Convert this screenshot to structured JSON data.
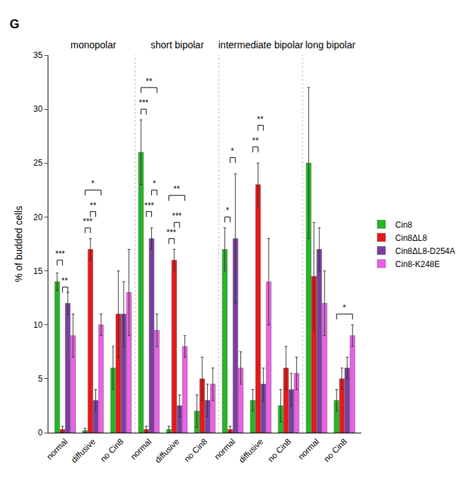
{
  "chart_data": {
    "type": "bar",
    "panel": "G",
    "y_label": "% of budded cells",
    "categories": [
      "normal",
      "diffusive",
      "no Cin8",
      "normal",
      "diffusive",
      "no Cin8",
      "normal",
      "diffusive",
      "no Cin8",
      "normal",
      "no Cin8"
    ],
    "groups": [
      {
        "label": "monopolar",
        "categories": [
          0,
          1,
          2
        ]
      },
      {
        "label": "short bipolar",
        "categories": [
          3,
          4,
          5
        ]
      },
      {
        "label": "intermediate bipolar",
        "categories": [
          6,
          7,
          8
        ]
      },
      {
        "label": "long bipolar",
        "categories": [
          9,
          10
        ]
      }
    ],
    "series": [
      {
        "name": "Cin8",
        "color": "#22b822",
        "values": [
          14,
          0.2,
          6,
          26,
          0.3,
          2,
          17,
          3,
          2.5,
          25,
          3
        ],
        "errors": [
          0.8,
          0.2,
          2,
          3,
          0.3,
          1.5,
          2,
          1,
          1.5,
          7,
          1
        ]
      },
      {
        "name": "Cin8ΔL8",
        "color": "#e81818",
        "values": [
          0.3,
          17,
          11,
          0.3,
          16,
          5,
          0.3,
          23,
          6,
          14.5,
          5
        ],
        "errors": [
          0.3,
          1,
          4,
          0.3,
          1,
          2,
          0.3,
          2,
          2,
          5,
          1
        ]
      },
      {
        "name": "Cin8ΔL8-D254A",
        "color": "#7b3fa3",
        "values": [
          12,
          3,
          11,
          18,
          2.5,
          3,
          18,
          4.5,
          4,
          17,
          6
        ],
        "errors": [
          1,
          1,
          3,
          1,
          1,
          1.5,
          6,
          1.5,
          1.5,
          2,
          1
        ]
      },
      {
        "name": "Cin8-K248E",
        "color": "#ee5fe8",
        "values": [
          9,
          10,
          13,
          9.5,
          8,
          4.5,
          6,
          14,
          5.5,
          12,
          9
        ],
        "errors": [
          2,
          1,
          4,
          1.5,
          1,
          1.5,
          1.5,
          4,
          1.5,
          3,
          1
        ]
      }
    ],
    "significance": [
      {
        "category": 0,
        "from": 0,
        "to": 1,
        "text": "***",
        "y": 16
      },
      {
        "category": 0,
        "from": 1,
        "to": 2,
        "text": "**",
        "y": 13.5
      },
      {
        "category": 1,
        "from": 0,
        "to": 1,
        "text": "***",
        "y": 19
      },
      {
        "category": 1,
        "from": 1,
        "to": 2,
        "text": "**",
        "y": 20.5
      },
      {
        "category": 1,
        "from": 0,
        "to": 3,
        "text": "*",
        "y": 22.5
      },
      {
        "category": 3,
        "from": 0,
        "to": 1,
        "text": "***",
        "y": 30
      },
      {
        "category": 3,
        "from": 1,
        "to": 2,
        "text": "***",
        "y": 20.5
      },
      {
        "category": 3,
        "from": 2,
        "to": 3,
        "text": "*",
        "y": 22.5
      },
      {
        "category": 3,
        "from": 0,
        "to": 3,
        "text": "**",
        "y": 32
      },
      {
        "category": 4,
        "from": 0,
        "to": 1,
        "text": "***",
        "y": 18
      },
      {
        "category": 4,
        "from": 1,
        "to": 2,
        "text": "***",
        "y": 19.5
      },
      {
        "category": 4,
        "from": 0,
        "to": 3,
        "text": "**",
        "y": 22
      },
      {
        "category": 6,
        "from": 0,
        "to": 1,
        "text": "*",
        "y": 20
      },
      {
        "category": 6,
        "from": 1,
        "to": 2,
        "text": "*",
        "y": 25.5
      },
      {
        "category": 7,
        "from": 0,
        "to": 1,
        "text": "**",
        "y": 26.5
      },
      {
        "category": 7,
        "from": 1,
        "to": 2,
        "text": "**",
        "y": 28.5
      },
      {
        "category": 10,
        "from": 0,
        "to": 3,
        "text": "*",
        "y": 11
      }
    ],
    "ylim": [
      0,
      35
    ],
    "yticks": [
      0,
      5,
      10,
      15,
      20,
      25,
      30,
      35
    ],
    "grid": false,
    "legend": "right"
  }
}
